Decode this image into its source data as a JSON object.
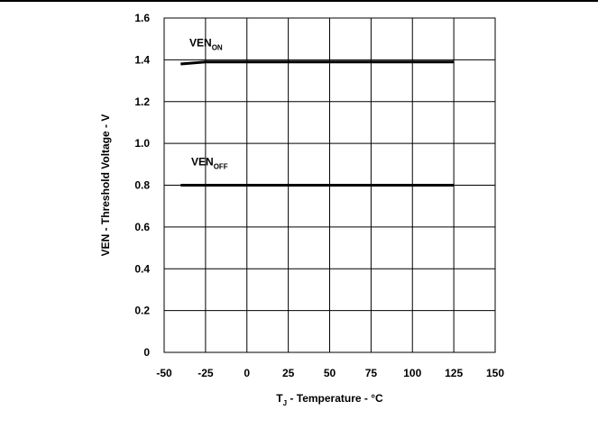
{
  "chart_data": {
    "type": "line",
    "x": [
      -40,
      -25,
      0,
      25,
      50,
      75,
      100,
      125
    ],
    "xlim": [
      -50,
      150
    ],
    "ylim": [
      0,
      1.6
    ],
    "xticks": [
      "-50",
      "-25",
      "0",
      "25",
      "50",
      "75",
      "100",
      "125",
      "150"
    ],
    "yticks": [
      "0",
      "0.2",
      "0.4",
      "0.6",
      "0.8",
      "1.0",
      "1.2",
      "1.4",
      "1.6"
    ],
    "xlabel": {
      "prefix": "T",
      "sub": "J",
      "suffix": " - Temperature - °C"
    },
    "ylabel": "VEN - Threshold Voltage - V",
    "grid": true,
    "series": [
      {
        "name_main": "VEN",
        "name_sub": "ON",
        "values": [
          1.38,
          1.39,
          1.39,
          1.39,
          1.39,
          1.39,
          1.39,
          1.39
        ]
      },
      {
        "name_main": "VEN",
        "name_sub": "OFF",
        "values": [
          0.8,
          0.8,
          0.8,
          0.8,
          0.8,
          0.8,
          0.8,
          0.8
        ]
      }
    ]
  }
}
